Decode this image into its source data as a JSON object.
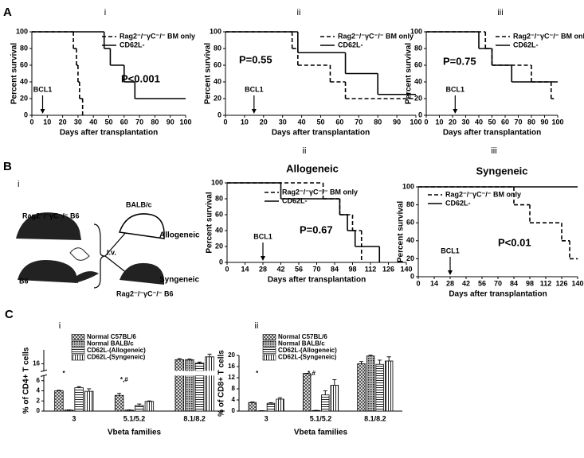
{
  "figure": {
    "panels": [
      "A",
      "B",
      "C"
    ]
  },
  "diagram": {
    "panel": "i",
    "texts": [
      "Rag2⁻/⁻γC⁻/⁻ B6",
      "B6",
      "BALB/c",
      "Allogeneic",
      "I.v.",
      "Syngeneic",
      "Rag2⁻/⁻γC⁻/⁻ B6"
    ]
  },
  "chart_data": [
    {
      "type": "survival",
      "panel": "i",
      "xlabel": "Days after transplantation",
      "ylabel": "Percent survival",
      "xlim": [
        0,
        100
      ],
      "xticks": [
        0,
        10,
        20,
        30,
        40,
        50,
        60,
        70,
        80,
        90,
        100
      ],
      "ylim": [
        0,
        100
      ],
      "yticks": [
        0,
        20,
        40,
        60,
        80,
        100
      ],
      "series": [
        {
          "name": "Rag2⁻/⁻γC⁻/⁻ BM only",
          "style": "dashed",
          "color": "#000000",
          "x": [
            0,
            27,
            29,
            30,
            31,
            33
          ],
          "values": [
            100,
            80,
            60,
            40,
            20,
            0
          ]
        },
        {
          "name": "CD62L-",
          "style": "solid",
          "color": "#000000",
          "x": [
            0,
            47,
            51,
            60,
            67,
            100
          ],
          "values": [
            100,
            80,
            60,
            40,
            20,
            20
          ]
        }
      ],
      "annotations": [
        {
          "text": "P<0.001"
        }
      ],
      "arrow": {
        "text": "BCL1",
        "x": 7
      }
    },
    {
      "type": "survival",
      "panel": "ii",
      "xlabel": "Days after transplantation",
      "ylabel": "Percent survival",
      "xlim": [
        0,
        100
      ],
      "xticks": [
        0,
        10,
        20,
        30,
        40,
        50,
        60,
        70,
        80,
        90,
        100
      ],
      "ylim": [
        0,
        100
      ],
      "yticks": [
        0,
        20,
        40,
        60,
        80,
        100
      ],
      "series": [
        {
          "name": "Rag2⁻/⁻γC⁻/⁻ BM only",
          "style": "dashed",
          "color": "#000000",
          "x": [
            0,
            35,
            38,
            55,
            63,
            100
          ],
          "values": [
            100,
            80,
            60,
            40,
            20,
            20
          ]
        },
        {
          "name": "CD62L-",
          "style": "solid",
          "color": "#000000",
          "x": [
            0,
            38,
            63,
            80,
            100
          ],
          "values": [
            100,
            75,
            50,
            25,
            25
          ]
        }
      ],
      "annotations": [
        {
          "text": "P=0.55"
        }
      ],
      "arrow": {
        "text": "BCL1",
        "x": 15
      }
    },
    {
      "type": "survival",
      "panel": "iii",
      "xlabel": "Days after transplantation",
      "ylabel": "Percent survival",
      "xlim": [
        0,
        100
      ],
      "xticks": [
        0,
        10,
        20,
        30,
        40,
        50,
        60,
        70,
        80,
        90,
        100
      ],
      "ylim": [
        0,
        100
      ],
      "yticks": [
        0,
        20,
        40,
        60,
        80,
        100
      ],
      "series": [
        {
          "name": "Rag2⁻/⁻γC⁻/⁻ BM only",
          "style": "dashed",
          "color": "#000000",
          "x": [
            0,
            45,
            50,
            80,
            95,
            97
          ],
          "values": [
            100,
            80,
            60,
            40,
            20,
            20
          ]
        },
        {
          "name": "CD62L-",
          "style": "solid",
          "color": "#000000",
          "x": [
            0,
            40,
            50,
            65,
            100
          ],
          "values": [
            100,
            80,
            60,
            40,
            40
          ]
        }
      ],
      "annotations": [
        {
          "text": "P=0.75"
        }
      ],
      "arrow": {
        "text": "BCL1",
        "x": 22
      }
    },
    {
      "type": "survival",
      "panel": "ii",
      "title": "Allogeneic",
      "xlabel": "Days after transplantation",
      "ylabel": "Percent survival",
      "xlim": [
        0,
        140
      ],
      "xticks": [
        0,
        14,
        28,
        42,
        56,
        70,
        84,
        98,
        112,
        126,
        140
      ],
      "ylim": [
        0,
        100
      ],
      "yticks": [
        0,
        20,
        40,
        60,
        80,
        100
      ],
      "series": [
        {
          "name": "Rag2⁻/⁻γC⁻/⁻ BM only",
          "style": "dashed",
          "color": "#000000",
          "x": [
            0,
            75,
            88,
            98,
            105
          ],
          "values": [
            100,
            80,
            60,
            40,
            0
          ]
        },
        {
          "name": "CD62L-",
          "style": "solid",
          "color": "#000000",
          "x": [
            0,
            42,
            88,
            94,
            100,
            119
          ],
          "values": [
            100,
            80,
            60,
            40,
            20,
            0
          ]
        }
      ],
      "annotations": [
        {
          "text": "P=0.67"
        }
      ],
      "arrow": {
        "text": "BCL1",
        "x": 28
      }
    },
    {
      "type": "survival",
      "panel": "iii",
      "title": "Syngeneic",
      "xlabel": "Days after transplantation",
      "ylabel": "Percent survival",
      "xlim": [
        0,
        140
      ],
      "xticks": [
        0,
        14,
        28,
        42,
        56,
        70,
        84,
        98,
        112,
        126,
        140
      ],
      "ylim": [
        0,
        100
      ],
      "yticks": [
        0,
        20,
        40,
        60,
        80,
        100
      ],
      "series": [
        {
          "name": "Rag2⁻/⁻γC⁻/⁻ BM only",
          "style": "dashed",
          "color": "#000000",
          "x": [
            0,
            84,
            98,
            126,
            133,
            140
          ],
          "values": [
            100,
            80,
            60,
            40,
            20,
            20
          ]
        },
        {
          "name": "CD62L-",
          "style": "solid",
          "color": "#000000",
          "x": [
            0,
            140
          ],
          "values": [
            100,
            100
          ]
        }
      ],
      "annotations": [
        {
          "text": "P<0.01"
        }
      ],
      "arrow": {
        "text": "BCL1",
        "x": 28
      }
    },
    {
      "type": "bar",
      "panel": "i",
      "xlabel": "Vbeta families",
      "ylabel": "% of CD4+ T cells",
      "categories": [
        "3",
        "5.1/5.2",
        "8.1/8.2"
      ],
      "ylim": [
        0,
        20
      ],
      "ybreak": [
        7,
        14
      ],
      "yticks": [
        0,
        2,
        4,
        6,
        16
      ],
      "series": [
        {
          "name": "Normal C57BL/6",
          "pattern": "crosshatch",
          "values": [
            4.0,
            3.1,
            17.2
          ],
          "errors": [
            0.1,
            0.4,
            0.3
          ]
        },
        {
          "name": "Normal BALB/c",
          "pattern": "dots",
          "values": [
            0.2,
            0.2,
            17.2
          ],
          "errors": [
            0.05,
            0.05,
            0.2
          ]
        },
        {
          "name": "CD62L-(Allogeneic)",
          "pattern": "hlines",
          "values": [
            4.6,
            1.1,
            16.2
          ],
          "errors": [
            0.2,
            0.3,
            0.3
          ]
        },
        {
          "name": "CD62L-(Syngeneic)",
          "pattern": "vlines",
          "values": [
            3.9,
            1.9,
            18.0
          ],
          "errors": [
            0.5,
            0.1,
            0.8
          ]
        }
      ],
      "annotations": [
        {
          "text": "*",
          "category": 0
        },
        {
          "text": "*,#",
          "category": 1
        }
      ]
    },
    {
      "type": "bar",
      "panel": "ii",
      "xlabel": "Vbeta families",
      "ylabel": "% of CD8+ T cells",
      "categories": [
        "3",
        "5.1/5.2",
        "8.1/8.2"
      ],
      "ylim": [
        0,
        20
      ],
      "yticks": [
        0,
        4,
        8,
        12,
        16,
        20
      ],
      "series": [
        {
          "name": "Normal C57BL/6",
          "pattern": "crosshatch",
          "values": [
            3.1,
            13.5,
            17.0
          ],
          "errors": [
            0.2,
            0.1,
            0.8
          ]
        },
        {
          "name": "Normal BALB/c",
          "pattern": "dots",
          "values": [
            0.1,
            0.2,
            19.8
          ],
          "errors": [
            0.05,
            0.05,
            0.3
          ]
        },
        {
          "name": "CD62L-(Allogeneic)",
          "pattern": "hlines",
          "values": [
            2.8,
            5.8,
            16.8
          ],
          "errors": [
            0.2,
            1.5,
            1.5
          ]
        },
        {
          "name": "CD62L-(Syngeneic)",
          "pattern": "vlines",
          "values": [
            4.3,
            9.3,
            18.0
          ],
          "errors": [
            0.5,
            2.0,
            1.5
          ]
        }
      ],
      "annotations": [
        {
          "text": "*",
          "category": 0
        },
        {
          "text": "*,#",
          "category": 1
        }
      ]
    }
  ]
}
